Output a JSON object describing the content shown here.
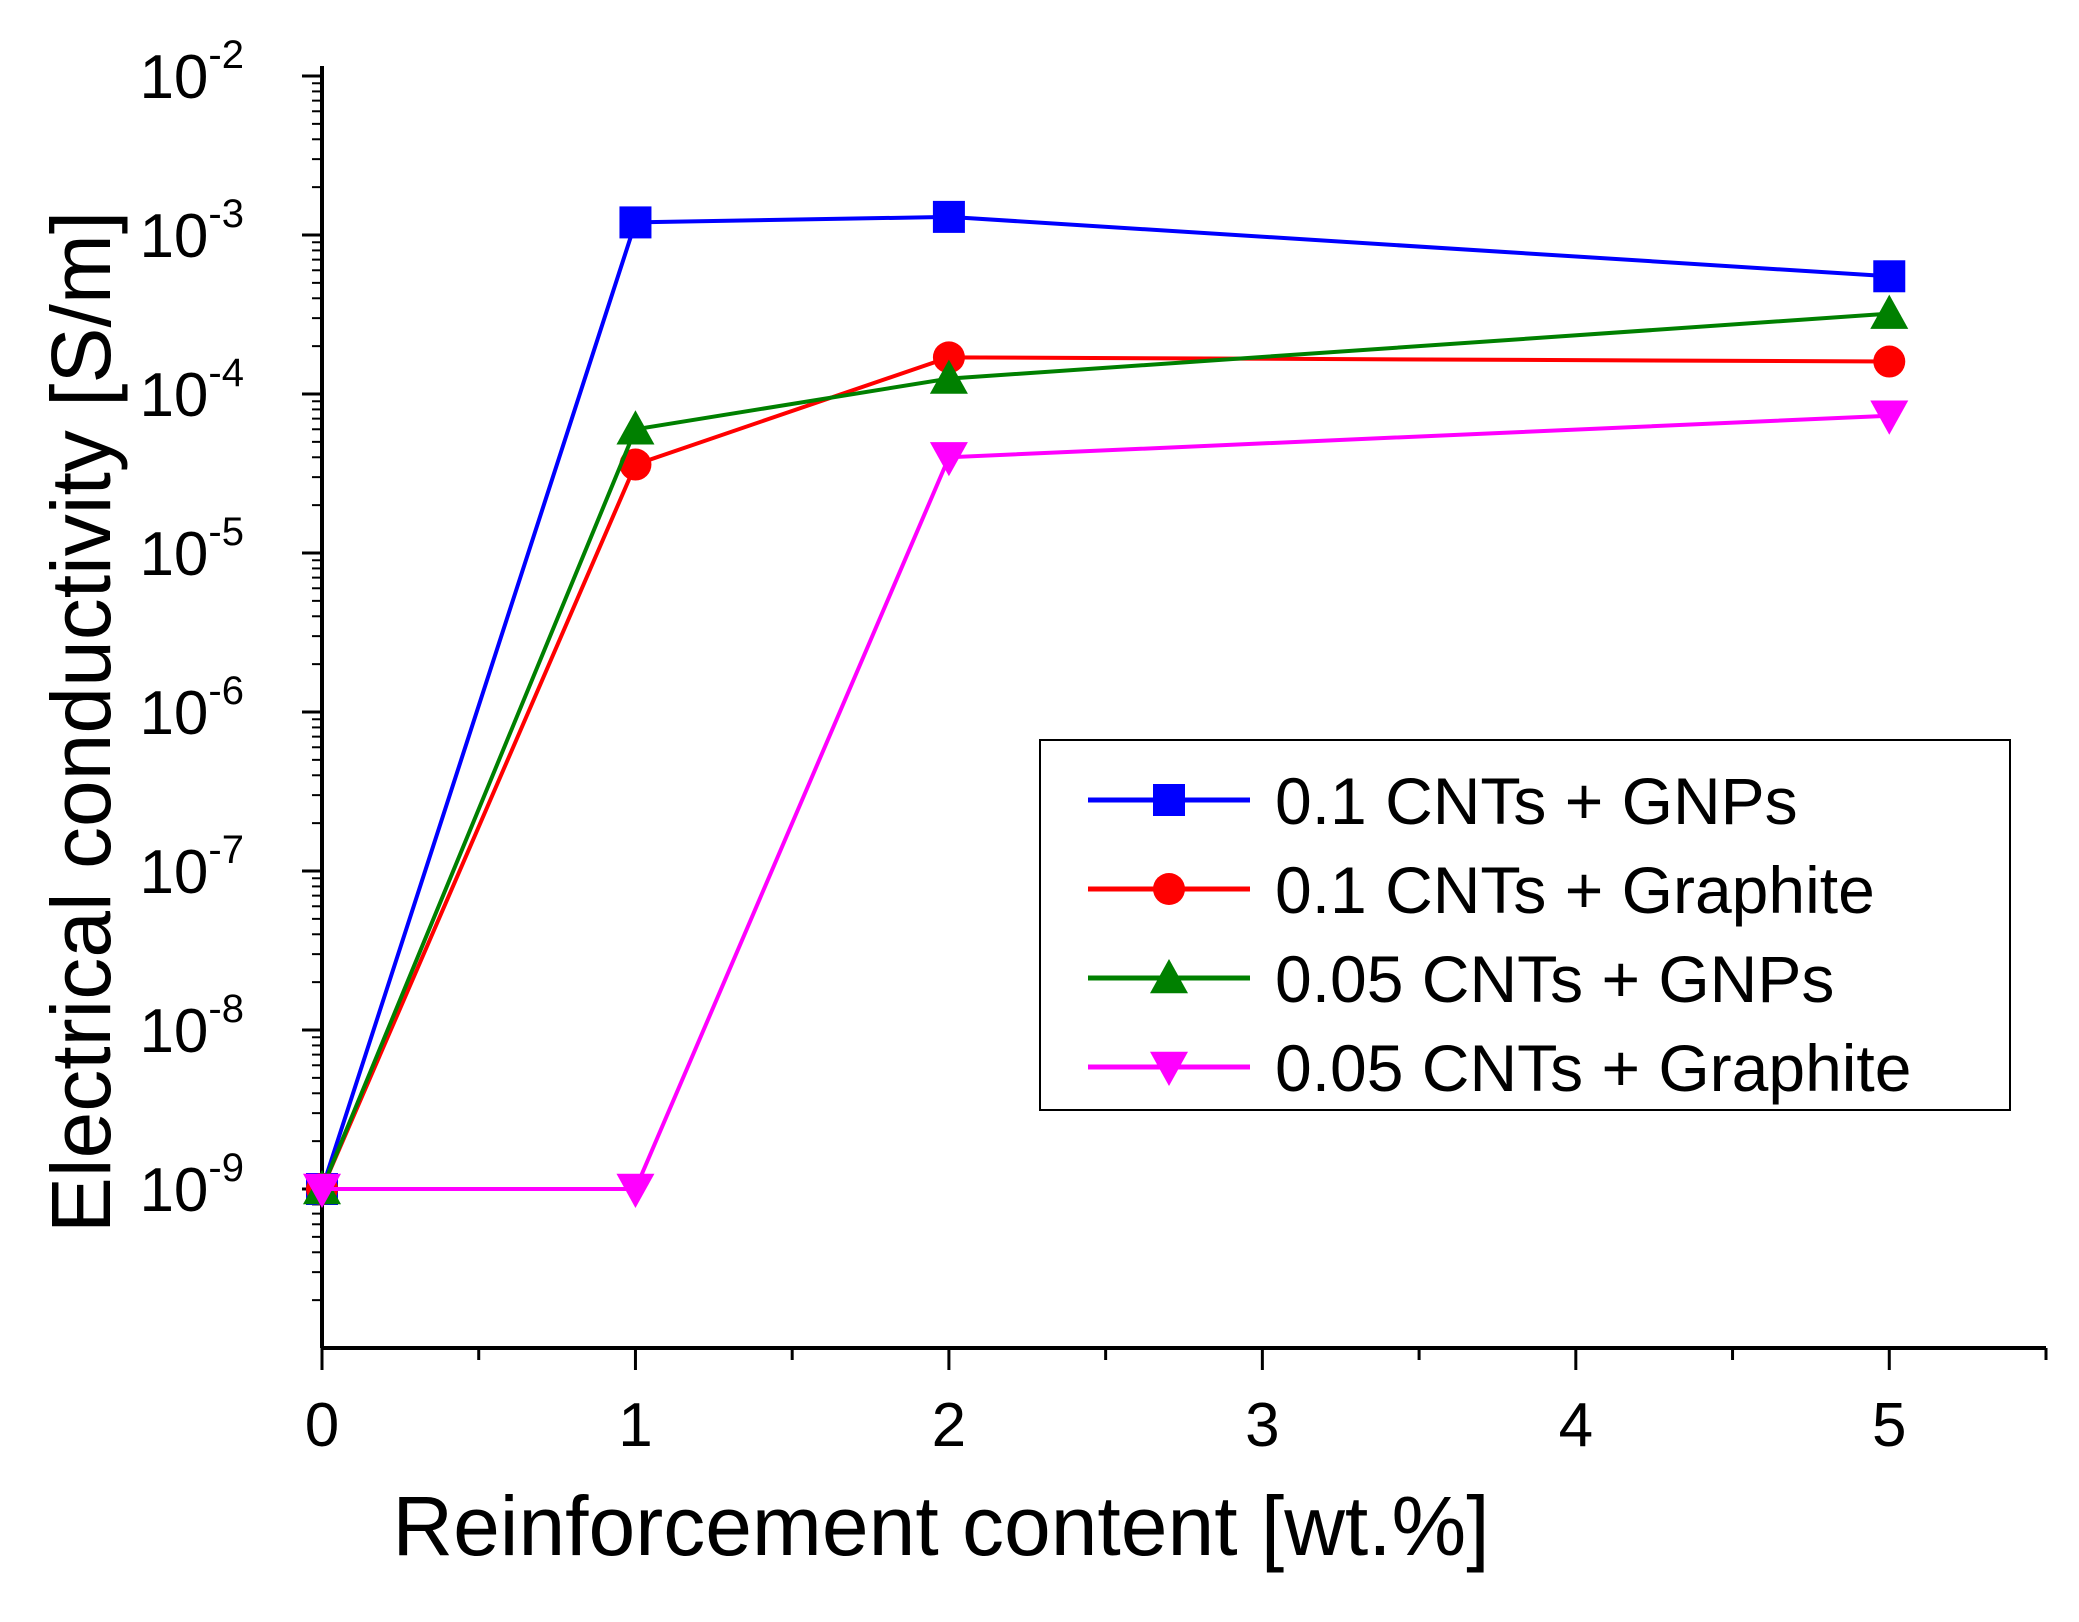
{
  "chart_data": {
    "type": "line",
    "title": "",
    "xlabel": "Reinforcement content [wt.%]",
    "ylabel": "Electrical conductivity [S/m]",
    "xlim": [
      0,
      5.5
    ],
    "ylim": [
      1e-10,
      0.01
    ],
    "yscale": "log",
    "x_ticks": [
      {
        "value": 0,
        "label": "0"
      },
      {
        "value": 1,
        "label": "1"
      },
      {
        "value": 2,
        "label": "2"
      },
      {
        "value": 3,
        "label": "3"
      },
      {
        "value": 4,
        "label": "4"
      },
      {
        "value": 5,
        "label": "5"
      }
    ],
    "y_ticks": [
      {
        "exp": -9,
        "base": "10",
        "sup": "-9"
      },
      {
        "exp": -8,
        "base": "10",
        "sup": "-8"
      },
      {
        "exp": -7,
        "base": "10",
        "sup": "-7"
      },
      {
        "exp": -6,
        "base": "10",
        "sup": "-6"
      },
      {
        "exp": -5,
        "base": "10",
        "sup": "-5"
      },
      {
        "exp": -4,
        "base": "10",
        "sup": "-4"
      },
      {
        "exp": -3,
        "base": "10",
        "sup": "-3"
      },
      {
        "exp": -2,
        "base": "10",
        "sup": "-2"
      }
    ],
    "legend_position": "center-right",
    "series": [
      {
        "name": "0.1 CNTs + GNPs",
        "color": "#0000ff",
        "marker": "square",
        "x": [
          0,
          1,
          2,
          5
        ],
        "y": [
          1e-09,
          0.0012,
          0.0013,
          0.00055
        ]
      },
      {
        "name": "0.1 CNTs + Graphite",
        "color": "#ff0000",
        "marker": "circle",
        "x": [
          0,
          1,
          2,
          5
        ],
        "y": [
          1e-09,
          3.6e-05,
          0.00017,
          0.00016
        ]
      },
      {
        "name": "0.05 CNTs + GNPs",
        "color": "#008000",
        "marker": "triangle-up",
        "x": [
          0,
          1,
          2,
          5
        ],
        "y": [
          1e-09,
          6e-05,
          0.000125,
          0.00032
        ]
      },
      {
        "name": "0.05 CNTs + Graphite",
        "color": "#ff00ff",
        "marker": "triangle-down",
        "x": [
          0,
          1,
          2,
          5
        ],
        "y": [
          1e-09,
          1e-09,
          4e-05,
          7.3e-05
        ]
      }
    ]
  }
}
